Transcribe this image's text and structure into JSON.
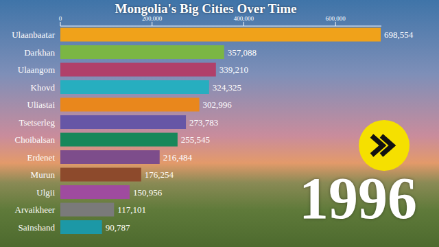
{
  "chart_data": {
    "type": "bar",
    "orientation": "horizontal",
    "title": "Mongolia's Big Cities Over Time",
    "annotation": "1996",
    "categories": [
      "Ulaanbaatar",
      "Darkhan",
      "Ulaangom",
      "Khovd",
      "Uliastai",
      "Tsetserleg",
      "Choibalsan",
      "Erdenet",
      "Murun",
      "Ulgii",
      "Arvaikheer",
      "Sainshand"
    ],
    "values": [
      698554,
      357088,
      339210,
      324325,
      302996,
      273783,
      255545,
      216484,
      176254,
      150956,
      117101,
      90787
    ],
    "value_labels": [
      "698,554",
      "357,088",
      "339,210",
      "324,325",
      "302,996",
      "273,783",
      "255,545",
      "216,484",
      "176,254",
      "150,956",
      "117,101",
      "90,787"
    ],
    "colors": [
      "#f0a21a",
      "#7bb644",
      "#b0406a",
      "#27aebf",
      "#e9871c",
      "#6656a6",
      "#17875a",
      "#7d4d8b",
      "#8d4a2c",
      "#9f4b9f",
      "#7a7a7a",
      "#1c98a6"
    ],
    "xlim": [
      0,
      700000
    ],
    "xticks": [
      0,
      {
        "value": 200000,
        "label": "200,000"
      },
      {
        "value": 400000,
        "label": "400,000"
      },
      {
        "value": 600000,
        "label": "600,000"
      }
    ],
    "data_labels": true,
    "grid": false
  }
}
